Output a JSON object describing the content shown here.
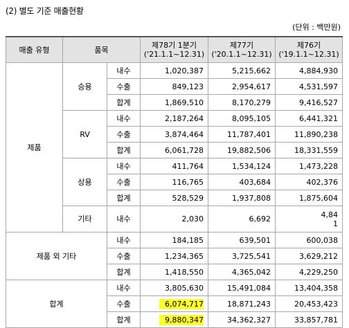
{
  "title": "(2) 별도 기준 매출현황",
  "unit": "(단위 : 백만원)",
  "headers": {
    "sales_type": "매출 유형",
    "item": "품목",
    "p78": [
      "제78기 1분기",
      "('21.1.1~12.31)"
    ],
    "p77": [
      "제77기",
      "('20.1.1~12.31)"
    ],
    "p76": [
      "제76기",
      "('19.1.1~12.31)"
    ]
  },
  "groups": {
    "product": "제품",
    "other": "제품 외 기타",
    "total": "합계"
  },
  "items": {
    "passenger": "승용",
    "rv": "RV",
    "commercial": "상용",
    "etc": "기타"
  },
  "rows": [
    {
      "sub": "내수",
      "v": [
        "1,020,387",
        "5,215,662",
        "4,884,930"
      ]
    },
    {
      "sub": "수출",
      "v": [
        "849,123",
        "2,954,617",
        "4,531,597"
      ]
    },
    {
      "sub": "합계",
      "v": [
        "1,869,510",
        "8,170,279",
        "9,416,527"
      ]
    },
    {
      "sub": "내수",
      "v": [
        "2,187,264",
        "8,095,105",
        "6,441,321"
      ]
    },
    {
      "sub": "수출",
      "v": [
        "3,874,464",
        "11,787,401",
        "11,890,238"
      ]
    },
    {
      "sub": "합계",
      "v": [
        "6,061,728",
        "19,882,506",
        "18,331,559"
      ]
    },
    {
      "sub": "내수",
      "v": [
        "411,764",
        "1,534,124",
        "1,473,228"
      ]
    },
    {
      "sub": "수출",
      "v": [
        "116,765",
        "403,684",
        "402,376"
      ]
    },
    {
      "sub": "합계",
      "v": [
        "528,529",
        "1,937,808",
        "1,875,604"
      ]
    },
    {
      "sub": "내수",
      "v": [
        "2,030",
        "6,692",
        "4,84"
      ],
      "v3b": "1"
    },
    {
      "sub": "내수",
      "v": [
        "184,185",
        "639,501",
        "600,038"
      ]
    },
    {
      "sub": "수출",
      "v": [
        "1,234,365",
        "3,725,541",
        "3,629,212"
      ]
    },
    {
      "sub": "합계",
      "v": [
        "1,418,550",
        "4,365,042",
        "4,229,250"
      ]
    },
    {
      "sub": "내수",
      "v": [
        "3,805,630",
        "15,491,084",
        "13,404,358"
      ]
    },
    {
      "sub": "수출",
      "v": [
        "6,074,717",
        "18,871,243",
        "20,453,423"
      ]
    },
    {
      "sub": "합계",
      "v": [
        "9,880,347",
        "34,362,327",
        "33,857,781"
      ]
    }
  ],
  "highlight_color": "#ffff33"
}
